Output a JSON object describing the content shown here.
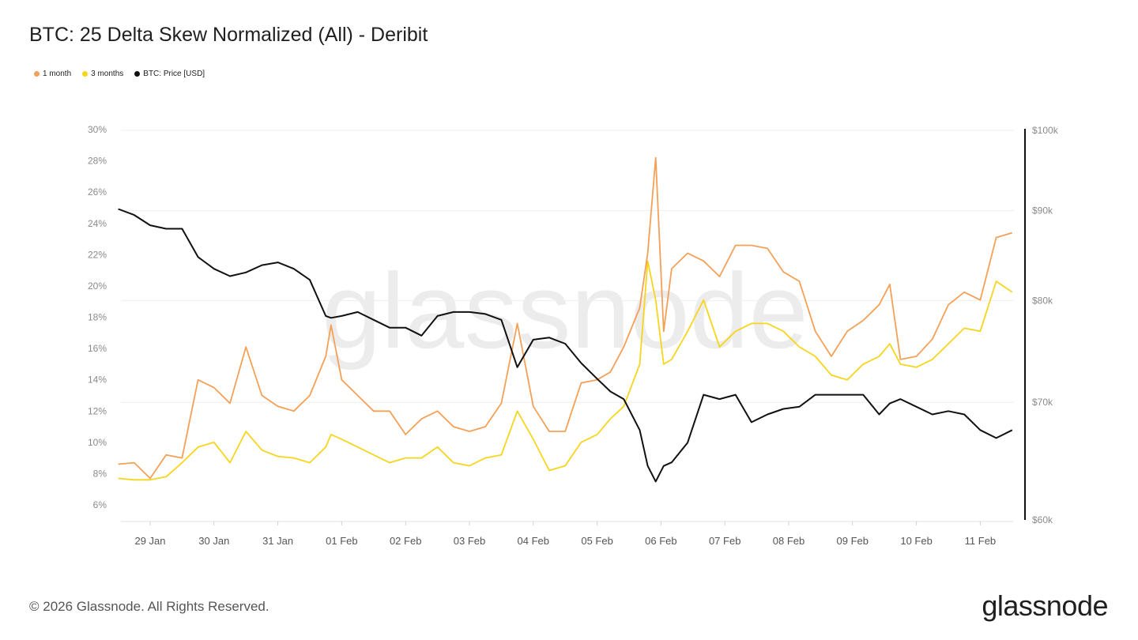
{
  "header": {
    "title": "BTC: 25 Delta Skew Normalized (All) - Deribit"
  },
  "legend": [
    {
      "label": "1 month",
      "color": "#F5A057"
    },
    {
      "label": "3 months",
      "color": "#F7D51E"
    },
    {
      "label": "BTC: Price [USD]",
      "color": "#111111"
    }
  ],
  "footer": {
    "copyright": "© 2026 Glassnode. All Rights Reserved.",
    "logo": "glassnode",
    "watermark": "glassnode"
  },
  "chart_data": {
    "type": "line",
    "title": "BTC: 25 Delta Skew Normalized (All) - Deribit",
    "left_axis": {
      "ticks": [
        "6%",
        "8%",
        "10%",
        "12%",
        "14%",
        "16%",
        "18%",
        "20%",
        "22%",
        "24%",
        "26%",
        "28%",
        "30%"
      ],
      "range": [
        6,
        30
      ],
      "unit": "%"
    },
    "right_axis": {
      "ticks": [
        "$60k",
        "$70k",
        "$80k",
        "$90k",
        "$100k"
      ],
      "tick_values": [
        60,
        70,
        80,
        90,
        100
      ],
      "range": [
        60,
        100
      ],
      "scale": "log",
      "unit": "USD thousands"
    },
    "x_ticks": [
      "29 Jan",
      "30 Jan",
      "31 Jan",
      "01 Feb",
      "02 Feb",
      "03 Feb",
      "04 Feb",
      "05 Feb",
      "06 Feb",
      "07 Feb",
      "08 Feb",
      "09 Feb",
      "10 Feb",
      "11 Feb"
    ],
    "grid": "horizontal",
    "legend_placement": "top-left",
    "x": [
      "28 Jan 12:00",
      "28 Jan 18:00",
      "29 Jan 00:00",
      "29 Jan 06:00",
      "29 Jan 12:00",
      "29 Jan 18:00",
      "30 Jan 00:00",
      "30 Jan 06:00",
      "30 Jan 12:00",
      "30 Jan 18:00",
      "31 Jan 00:00",
      "31 Jan 06:00",
      "31 Jan 12:00",
      "31 Jan 18:00",
      "31 Jan 20:00",
      "01 Feb 00:00",
      "01 Feb 06:00",
      "01 Feb 12:00",
      "01 Feb 18:00",
      "02 Feb 00:00",
      "02 Feb 06:00",
      "02 Feb 12:00",
      "02 Feb 18:00",
      "03 Feb 00:00",
      "03 Feb 06:00",
      "03 Feb 12:00",
      "03 Feb 18:00",
      "04 Feb 00:00",
      "04 Feb 06:00",
      "04 Feb 12:00",
      "04 Feb 18:00",
      "05 Feb 00:00",
      "05 Feb 05:00",
      "05 Feb 10:00",
      "05 Feb 16:00",
      "05 Feb 19:00",
      "05 Feb 22:00",
      "06 Feb 01:00",
      "06 Feb 04:00",
      "06 Feb 10:00",
      "06 Feb 16:00",
      "06 Feb 22:00",
      "07 Feb 04:00",
      "07 Feb 10:00",
      "07 Feb 16:00",
      "07 Feb 22:00",
      "08 Feb 04:00",
      "08 Feb 10:00",
      "08 Feb 16:00",
      "08 Feb 22:00",
      "09 Feb 04:00",
      "09 Feb 10:00",
      "09 Feb 14:00",
      "09 Feb 18:00",
      "10 Feb 00:00",
      "10 Feb 06:00",
      "10 Feb 12:00",
      "10 Feb 18:00",
      "11 Feb 00:00",
      "11 Feb 06:00",
      "11 Feb 12:00"
    ],
    "series": [
      {
        "name": "1 month",
        "axis": "left",
        "color": "#F5A057",
        "values": [
          8.6,
          8.7,
          7.7,
          9.2,
          9.0,
          14.0,
          13.5,
          12.5,
          16.1,
          13.0,
          12.3,
          12.0,
          13.0,
          15.5,
          17.5,
          14.0,
          13.0,
          12.0,
          12.0,
          10.5,
          11.5,
          12.0,
          11.0,
          10.7,
          11.0,
          12.5,
          17.6,
          12.3,
          10.7,
          10.7,
          13.8,
          14.0,
          14.5,
          16.1,
          18.6,
          22.1,
          28.2,
          17.1,
          21.1,
          22.1,
          21.6,
          20.6,
          22.6,
          22.6,
          22.4,
          20.9,
          20.3,
          17.1,
          15.5,
          17.1,
          17.8,
          18.8,
          20.1,
          15.3,
          15.5,
          16.6,
          18.8,
          19.6,
          19.1,
          23.1,
          23.4
        ]
      },
      {
        "name": "3 months",
        "axis": "left",
        "color": "#F7D51E",
        "values": [
          7.7,
          7.6,
          7.6,
          7.8,
          8.7,
          9.7,
          10.0,
          8.7,
          10.7,
          9.5,
          9.1,
          9.0,
          8.7,
          9.7,
          10.5,
          10.2,
          9.7,
          9.2,
          8.7,
          9.0,
          9.0,
          9.7,
          8.7,
          8.5,
          9.0,
          9.2,
          12.0,
          10.2,
          8.2,
          8.5,
          10.0,
          10.5,
          11.5,
          12.3,
          15.0,
          21.6,
          19.1,
          15.0,
          15.3,
          17.1,
          19.1,
          16.1,
          17.1,
          17.6,
          17.6,
          17.1,
          16.1,
          15.5,
          14.3,
          14.0,
          15.0,
          15.5,
          16.3,
          15.0,
          14.8,
          15.3,
          16.3,
          17.3,
          17.1,
          20.3,
          19.6
        ]
      },
      {
        "name": "BTC: Price [USD]",
        "axis": "right",
        "color": "#111111",
        "values": [
          90.2,
          89.5,
          88.3,
          87.9,
          87.9,
          84.7,
          83.4,
          82.6,
          83.0,
          83.8,
          84.1,
          83.4,
          82.2,
          78.4,
          78.2,
          78.4,
          78.8,
          78.0,
          77.2,
          77.2,
          76.4,
          78.4,
          78.8,
          78.8,
          78.6,
          78.0,
          73.3,
          76.0,
          76.2,
          75.6,
          73.7,
          72.2,
          71.0,
          70.3,
          67.5,
          64.4,
          63.1,
          64.4,
          64.7,
          66.4,
          70.7,
          70.3,
          70.7,
          68.2,
          68.9,
          69.4,
          69.6,
          70.7,
          70.7,
          70.7,
          70.7,
          68.9,
          69.9,
          70.3,
          69.6,
          68.9,
          69.2,
          68.9,
          67.5,
          66.8,
          67.5
        ]
      }
    ]
  }
}
